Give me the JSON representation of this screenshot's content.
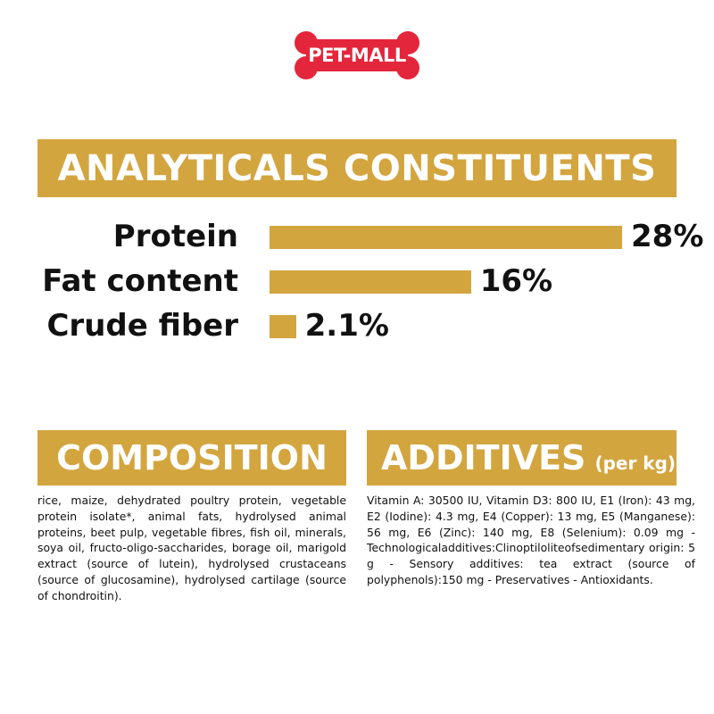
{
  "logo": {
    "text": "PET-MALL",
    "color": "#e3263b"
  },
  "main_heading": "ANALYTICALS CONSTITUENTS",
  "accent_color": "#d3a53f",
  "constituents": [
    {
      "label": "Protein",
      "value_label": "28%",
      "value": 28
    },
    {
      "label": "Fat content",
      "value_label": "16%",
      "value": 16
    },
    {
      "label": "Crude fiber",
      "value_label": "2.1%",
      "value": 2.1
    }
  ],
  "composition": {
    "heading": "COMPOSITION",
    "text": "rice, maize, dehydrated poultry protein, vegetable protein isolate*, animal fats, hydrolysed animal proteins, beet pulp, vegetable fibres, fish oil, minerals, soya oil, fructo-oligo-saccharides, borage oil, marigold extract (source of lutein), hydrolysed crustaceans (source of glucosamine), hydrolysed cartilage (source of chondroitin)."
  },
  "additives": {
    "heading": "ADDITIVES",
    "unit": "(per kg)",
    "text": "Vitamin A: 30500 IU, Vitamin D3: 800 IU, E1 (Iron): 43 mg, E2 (Iodine): 4.3 mg, E4 (Copper): 13 mg, E5 (Manganese): 56 mg, E6 (Zinc): 140 mg, E8 (Selenium): 0.09 mg - Technologicaladditives:Clinoptiloliteofsedimentary origin: 5 g - Sensory additives: tea extract (source of polyphenols):150 mg - Preservatives - Antioxidants."
  }
}
